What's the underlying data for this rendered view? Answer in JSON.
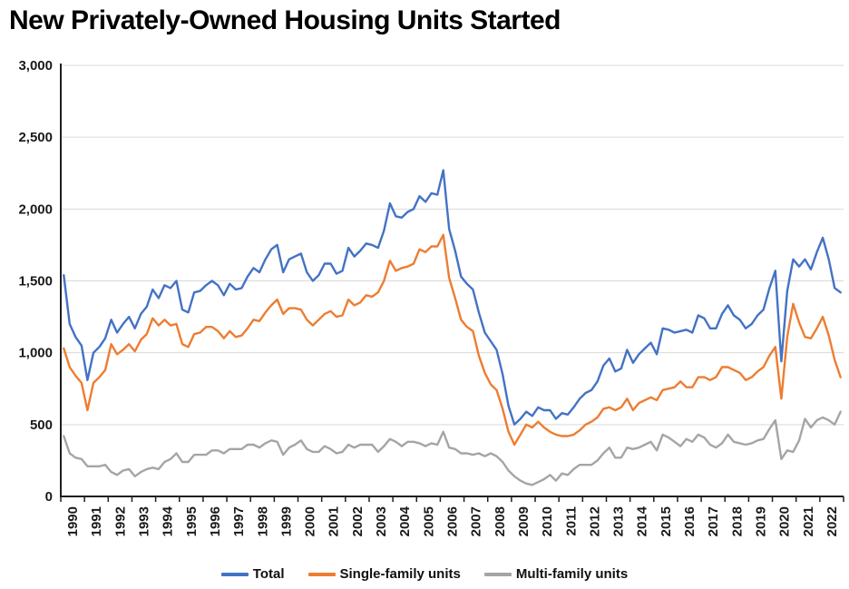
{
  "title": "New Privately-Owned Housing Units Started",
  "colors": {
    "total": "#4472C4",
    "single_family": "#ED7D31",
    "multi_family": "#A5A5A5",
    "gridline": "#D9D9D9",
    "axis": "#1f1f1f"
  },
  "chart_data": {
    "type": "line",
    "title": "New Privately-Owned Housing Units Started",
    "xlabel": "",
    "ylabel": "",
    "ylim": [
      0,
      3000
    ],
    "y_tick_labels": [
      "0",
      "500",
      "1,000",
      "1,500",
      "2,000",
      "2,500",
      "3,000"
    ],
    "y_tick_values": [
      0,
      500,
      1000,
      1500,
      2000,
      2500,
      3000
    ],
    "x_tick_labels": [
      "1990",
      "1991",
      "1992",
      "1993",
      "1994",
      "1995",
      "1996",
      "1997",
      "1998",
      "1999",
      "2000",
      "2001",
      "2002",
      "2003",
      "2004",
      "2005",
      "2006",
      "2007",
      "2008",
      "2009",
      "2010",
      "2011",
      "2012",
      "2013",
      "2014",
      "2015",
      "2016",
      "2017",
      "2018",
      "2019",
      "2020",
      "2021",
      "2022"
    ],
    "x_start_year": 1990,
    "x_end_year": 2023,
    "points_per_year": 4,
    "frequency": "quarterly estimates read from monthly chart, units = thousands (SAAR)",
    "grid": "horizontal",
    "legend_position": "bottom",
    "series": [
      {
        "name": "Total",
        "color": "#4472C4",
        "values": [
          1540,
          1200,
          1110,
          1050,
          810,
          1000,
          1040,
          1100,
          1230,
          1140,
          1200,
          1250,
          1170,
          1270,
          1320,
          1440,
          1380,
          1470,
          1450,
          1500,
          1300,
          1280,
          1420,
          1430,
          1470,
          1500,
          1470,
          1400,
          1480,
          1440,
          1450,
          1530,
          1590,
          1560,
          1650,
          1720,
          1750,
          1560,
          1650,
          1670,
          1690,
          1560,
          1500,
          1540,
          1620,
          1620,
          1550,
          1570,
          1730,
          1670,
          1710,
          1760,
          1750,
          1730,
          1850,
          2040,
          1950,
          1940,
          1980,
          2000,
          2090,
          2050,
          2110,
          2100,
          2270,
          1860,
          1710,
          1530,
          1480,
          1440,
          1280,
          1140,
          1080,
          1020,
          850,
          630,
          500,
          540,
          590,
          560,
          620,
          600,
          600,
          540,
          580,
          570,
          620,
          680,
          720,
          740,
          800,
          910,
          960,
          870,
          890,
          1020,
          930,
          990,
          1030,
          1070,
          990,
          1170,
          1160,
          1140,
          1150,
          1160,
          1140,
          1260,
          1240,
          1170,
          1170,
          1270,
          1330,
          1260,
          1230,
          1170,
          1200,
          1260,
          1300,
          1450,
          1570,
          940,
          1430,
          1650,
          1600,
          1650,
          1580,
          1700,
          1800,
          1650,
          1450,
          1420
        ]
      },
      {
        "name": "Single-family units",
        "color": "#ED7D31",
        "values": [
          1030,
          900,
          840,
          790,
          600,
          790,
          830,
          880,
          1060,
          990,
          1020,
          1060,
          1010,
          1090,
          1130,
          1240,
          1190,
          1230,
          1190,
          1200,
          1060,
          1040,
          1130,
          1140,
          1180,
          1180,
          1150,
          1100,
          1150,
          1110,
          1120,
          1170,
          1230,
          1220,
          1280,
          1330,
          1370,
          1270,
          1310,
          1310,
          1300,
          1230,
          1190,
          1230,
          1270,
          1290,
          1250,
          1260,
          1370,
          1330,
          1350,
          1400,
          1390,
          1420,
          1500,
          1640,
          1570,
          1590,
          1600,
          1620,
          1720,
          1700,
          1740,
          1740,
          1820,
          1520,
          1380,
          1230,
          1180,
          1150,
          980,
          860,
          780,
          740,
          610,
          450,
          360,
          430,
          500,
          480,
          520,
          480,
          450,
          430,
          420,
          420,
          430,
          460,
          500,
          520,
          550,
          610,
          620,
          600,
          620,
          680,
          600,
          650,
          670,
          690,
          670,
          740,
          750,
          760,
          800,
          760,
          760,
          830,
          830,
          810,
          830,
          900,
          900,
          880,
          860,
          810,
          830,
          870,
          900,
          980,
          1040,
          680,
          1110,
          1340,
          1210,
          1110,
          1100,
          1170,
          1250,
          1120,
          950,
          830
        ]
      },
      {
        "name": "Multi-family units",
        "color": "#A5A5A5",
        "values": [
          420,
          300,
          270,
          260,
          210,
          210,
          210,
          220,
          170,
          150,
          180,
          190,
          140,
          170,
          190,
          200,
          190,
          240,
          260,
          300,
          240,
          240,
          290,
          290,
          290,
          320,
          320,
          300,
          330,
          330,
          330,
          360,
          360,
          340,
          370,
          390,
          380,
          290,
          340,
          360,
          390,
          330,
          310,
          310,
          350,
          330,
          300,
          310,
          360,
          340,
          360,
          360,
          360,
          310,
          350,
          400,
          380,
          350,
          380,
          380,
          370,
          350,
          370,
          360,
          450,
          340,
          330,
          300,
          300,
          290,
          300,
          280,
          300,
          280,
          240,
          180,
          140,
          110,
          90,
          80,
          100,
          120,
          150,
          110,
          160,
          150,
          190,
          220,
          220,
          220,
          250,
          300,
          340,
          270,
          270,
          340,
          330,
          340,
          360,
          380,
          320,
          430,
          410,
          380,
          350,
          400,
          380,
          430,
          410,
          360,
          340,
          370,
          430,
          380,
          370,
          360,
          370,
          390,
          400,
          470,
          530,
          260,
          320,
          310,
          390,
          540,
          480,
          530,
          550,
          530,
          500,
          590
        ]
      }
    ]
  },
  "legend": {
    "items": [
      "Total",
      "Single-family units",
      "Multi-family units"
    ]
  }
}
